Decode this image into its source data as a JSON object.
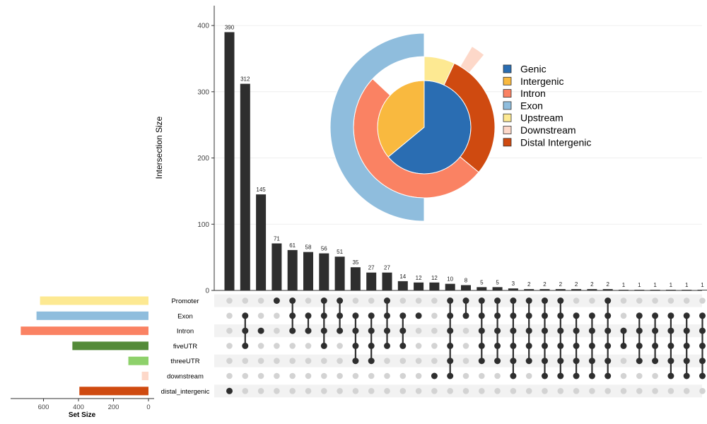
{
  "chart_data": [
    {
      "type": "upset",
      "ylabel": "Intersection Size",
      "xlabel": "",
      "ylim": [
        0,
        430
      ],
      "yticks": [
        0,
        100,
        200,
        300,
        400
      ],
      "grid": true,
      "set_size_label": "Set Size",
      "set_size_ticks": [
        600,
        400,
        200,
        0
      ],
      "set_size_max": 780,
      "sets": [
        {
          "name": "Promoter",
          "size": 620,
          "color": "#FDE992"
        },
        {
          "name": "Exon",
          "size": 640,
          "color": "#8FBDDD"
        },
        {
          "name": "Intron",
          "size": 730,
          "color": "#FA8263"
        },
        {
          "name": "fiveUTR",
          "size": 435,
          "color": "#548B39"
        },
        {
          "name": "threeUTR",
          "size": 115,
          "color": "#8ED16B"
        },
        {
          "name": "downstream",
          "size": 38,
          "color": "#FDD8C9"
        },
        {
          "name": "distal_intergenic",
          "size": 395,
          "color": "#CF4A10"
        }
      ],
      "intersections": [
        {
          "value": 390,
          "sets": [
            6
          ]
        },
        {
          "value": 312,
          "sets": [
            1,
            2,
            3
          ]
        },
        {
          "value": 145,
          "sets": [
            2
          ]
        },
        {
          "value": 71,
          "sets": [
            0
          ]
        },
        {
          "value": 61,
          "sets": [
            0,
            1,
            2
          ]
        },
        {
          "value": 58,
          "sets": [
            1,
            2
          ]
        },
        {
          "value": 56,
          "sets": [
            0,
            1,
            2,
            3
          ]
        },
        {
          "value": 51,
          "sets": [
            0,
            1,
            2
          ]
        },
        {
          "value": 35,
          "sets": [
            1,
            2,
            3,
            4
          ]
        },
        {
          "value": 27,
          "sets": [
            1,
            2,
            3,
            4
          ]
        },
        {
          "value": 27,
          "sets": [
            0,
            1,
            2,
            3
          ]
        },
        {
          "value": 14,
          "sets": [
            1,
            2,
            3
          ]
        },
        {
          "value": 12,
          "sets": [
            1
          ]
        },
        {
          "value": 12,
          "sets": [
            5
          ]
        },
        {
          "value": 10,
          "sets": [
            0,
            1,
            2,
            3,
            4,
            5
          ]
        },
        {
          "value": 8,
          "sets": [
            0,
            1
          ]
        },
        {
          "value": 5,
          "sets": [
            0,
            1,
            2,
            3,
            4
          ]
        },
        {
          "value": 5,
          "sets": [
            0,
            1,
            2,
            3,
            4
          ]
        },
        {
          "value": 3,
          "sets": [
            0,
            1,
            2,
            3,
            4,
            5
          ]
        },
        {
          "value": 2,
          "sets": [
            0,
            1,
            2,
            3,
            4
          ]
        },
        {
          "value": 2,
          "sets": [
            0,
            1,
            2,
            3,
            4,
            5
          ]
        },
        {
          "value": 2,
          "sets": [
            0,
            1,
            2,
            3,
            4,
            5
          ]
        },
        {
          "value": 2,
          "sets": [
            1,
            2,
            3,
            4,
            5
          ]
        },
        {
          "value": 2,
          "sets": [
            1,
            2,
            3,
            4,
            5
          ]
        },
        {
          "value": 2,
          "sets": [
            0,
            1,
            2,
            3,
            4,
            5
          ]
        },
        {
          "value": 1,
          "sets": [
            2,
            3
          ]
        },
        {
          "value": 1,
          "sets": [
            1,
            2,
            3,
            4
          ]
        },
        {
          "value": 1,
          "sets": [
            1,
            2,
            3,
            4
          ]
        },
        {
          "value": 1,
          "sets": [
            1,
            2,
            3,
            4,
            5
          ]
        },
        {
          "value": 1,
          "sets": [
            1,
            2,
            3,
            4,
            5
          ]
        },
        {
          "value": 1,
          "sets": [
            1,
            2,
            3,
            4,
            5
          ]
        }
      ],
      "bar_color": "#2E2E2E",
      "dot_active_color": "#2E2E2E",
      "dot_inactive_color": "#D3D3D3",
      "row_stripe_color": "#F2F2F2"
    },
    {
      "type": "pie",
      "title": "",
      "legend": "right",
      "legend_entries": [
        {
          "name": "Genic",
          "color": "#2A6DB2"
        },
        {
          "name": "Intergenic",
          "color": "#F9B93F"
        },
        {
          "name": "Intron",
          "color": "#FA8263"
        },
        {
          "name": "Exon",
          "color": "#8FBDDD"
        },
        {
          "name": "Upstream",
          "color": "#FDE992"
        },
        {
          "name": "Downstream",
          "color": "#FDD8C9"
        },
        {
          "name": "Distal Intergenic",
          "color": "#CF4A10"
        }
      ],
      "rings": [
        {
          "name": "inner",
          "slices": [
            {
              "name": "Genic",
              "value": 64,
              "color": "#2A6DB2"
            },
            {
              "name": "Intergenic",
              "value": 36,
              "color": "#F9B93F"
            }
          ]
        },
        {
          "name": "middle",
          "slices": [
            {
              "name": "Upstream",
              "value": 7,
              "color": "#FDE992"
            },
            {
              "name": "Distal Intergenic",
              "value": 29,
              "color": "#CF4A10"
            },
            {
              "name": "Intron",
              "value": 51,
              "color": "#FA8263"
            },
            {
              "name": "",
              "value": 13,
              "color": "#FFFFFF"
            }
          ]
        },
        {
          "name": "outer",
          "slices": [
            {
              "name": "Downstream",
              "value": 2.5,
              "color": "#FDD8C9",
              "start": 8.5
            },
            {
              "name": "Exon",
              "value": 50,
              "color": "#8FBDDD",
              "start": 50
            }
          ]
        }
      ]
    }
  ]
}
